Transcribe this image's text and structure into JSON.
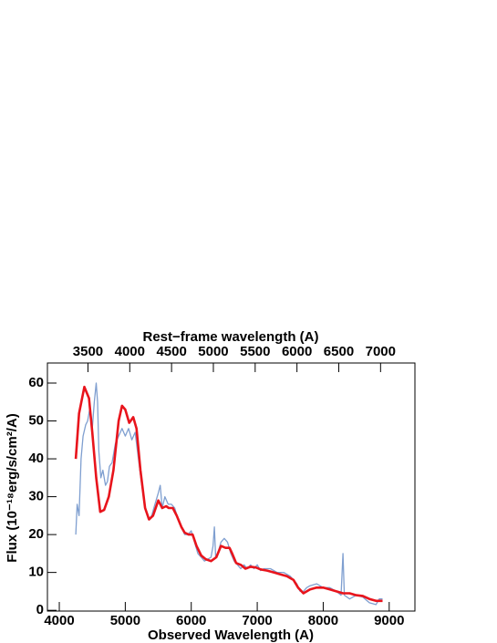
{
  "chart_data": {
    "type": "line",
    "xlabel": "Observed Wavelength (A)",
    "x2label": "Rest−frame wavelength (A)",
    "ylabel": "Flux (10⁻¹⁸erg/s/cm²/A)",
    "xlim": [
      3820,
      9390
    ],
    "xticks": [
      4000,
      5000,
      6000,
      7000,
      8000,
      9000
    ],
    "x2lim": [
      3015,
      7411
    ],
    "x2ticks": [
      3500,
      4000,
      4500,
      5000,
      5500,
      6000,
      6500,
      7000
    ],
    "ylim": [
      -0.2,
      65.3
    ],
    "yticks": [
      0,
      10,
      20,
      30,
      40,
      50,
      60
    ],
    "grid": false,
    "series": [
      {
        "color": "#7f9fd0",
        "x": [
          4250,
          4270,
          4300,
          4330,
          4360,
          4400,
          4430,
          4460,
          4500,
          4530,
          4560,
          4580,
          4600,
          4630,
          4660,
          4700,
          4730,
          4760,
          4800,
          4850,
          4900,
          4950,
          5000,
          5050,
          5100,
          5150,
          5200,
          5250,
          5300,
          5350,
          5400,
          5450,
          5500,
          5530,
          5560,
          5600,
          5650,
          5700,
          5750,
          5800,
          5850,
          5900,
          5950,
          6000,
          6050,
          6100,
          6150,
          6200,
          6250,
          6300,
          6330,
          6350,
          6370,
          6400,
          6450,
          6500,
          6550,
          6600,
          6650,
          6700,
          6750,
          6800,
          6850,
          6900,
          6950,
          7000,
          7050,
          7100,
          7200,
          7300,
          7400,
          7500,
          7600,
          7650,
          7700,
          7750,
          7800,
          7900,
          8000,
          8100,
          8200,
          8270,
          8300,
          8320,
          8400,
          8500,
          8600,
          8700,
          8800,
          8850,
          8900
        ],
        "values": [
          20,
          28,
          25,
          40,
          46,
          49,
          50,
          53,
          48,
          55,
          60,
          55,
          42,
          35,
          37,
          33,
          34,
          38,
          39,
          44,
          46,
          48,
          46,
          48,
          45,
          47,
          40,
          33,
          27,
          24,
          25,
          28,
          31,
          33,
          27,
          30,
          28,
          28,
          27,
          24,
          22,
          20,
          20,
          21,
          18,
          15,
          14,
          13,
          13.5,
          14,
          17,
          22,
          14,
          15,
          18,
          19,
          18,
          15,
          13,
          12,
          11,
          12,
          11,
          12,
          11,
          12,
          10.5,
          11,
          11,
          10,
          10,
          9,
          7,
          5,
          5,
          6,
          6.5,
          7,
          6,
          6,
          5,
          4,
          15,
          4,
          3,
          4,
          3.5,
          2,
          1.5,
          3,
          3
        ]
      },
      {
        "color": "#e8141c",
        "x": [
          4250,
          4300,
          4380,
          4450,
          4500,
          4560,
          4620,
          4680,
          4750,
          4820,
          4900,
          4950,
          5000,
          5060,
          5120,
          5170,
          5230,
          5300,
          5360,
          5420,
          5500,
          5560,
          5620,
          5660,
          5720,
          5780,
          5850,
          5900,
          5960,
          6020,
          6080,
          6150,
          6220,
          6300,
          6380,
          6450,
          6520,
          6580,
          6620,
          6680,
          6750,
          6820,
          6900,
          6980,
          7050,
          7150,
          7250,
          7350,
          7450,
          7550,
          7620,
          7700,
          7800,
          7900,
          8000,
          8100,
          8200,
          8300,
          8400,
          8500,
          8600,
          8700,
          8800,
          8900
        ],
        "values": [
          40,
          52,
          59,
          56,
          47,
          35,
          26,
          26.5,
          30,
          37,
          50,
          54,
          53,
          49.5,
          51,
          48,
          37,
          27,
          24,
          25,
          29,
          27,
          27.5,
          27,
          27,
          25,
          22,
          20.5,
          20,
          20,
          17,
          14.5,
          13.5,
          13,
          14,
          17,
          16.5,
          16.5,
          15,
          12.5,
          12,
          11,
          11.5,
          11.3,
          10.8,
          10.5,
          10,
          9.5,
          9,
          8,
          6,
          4.5,
          5.5,
          6,
          6,
          5.5,
          5,
          4.5,
          4.5,
          4,
          3.8,
          3,
          2.5,
          2.5
        ]
      }
    ]
  }
}
